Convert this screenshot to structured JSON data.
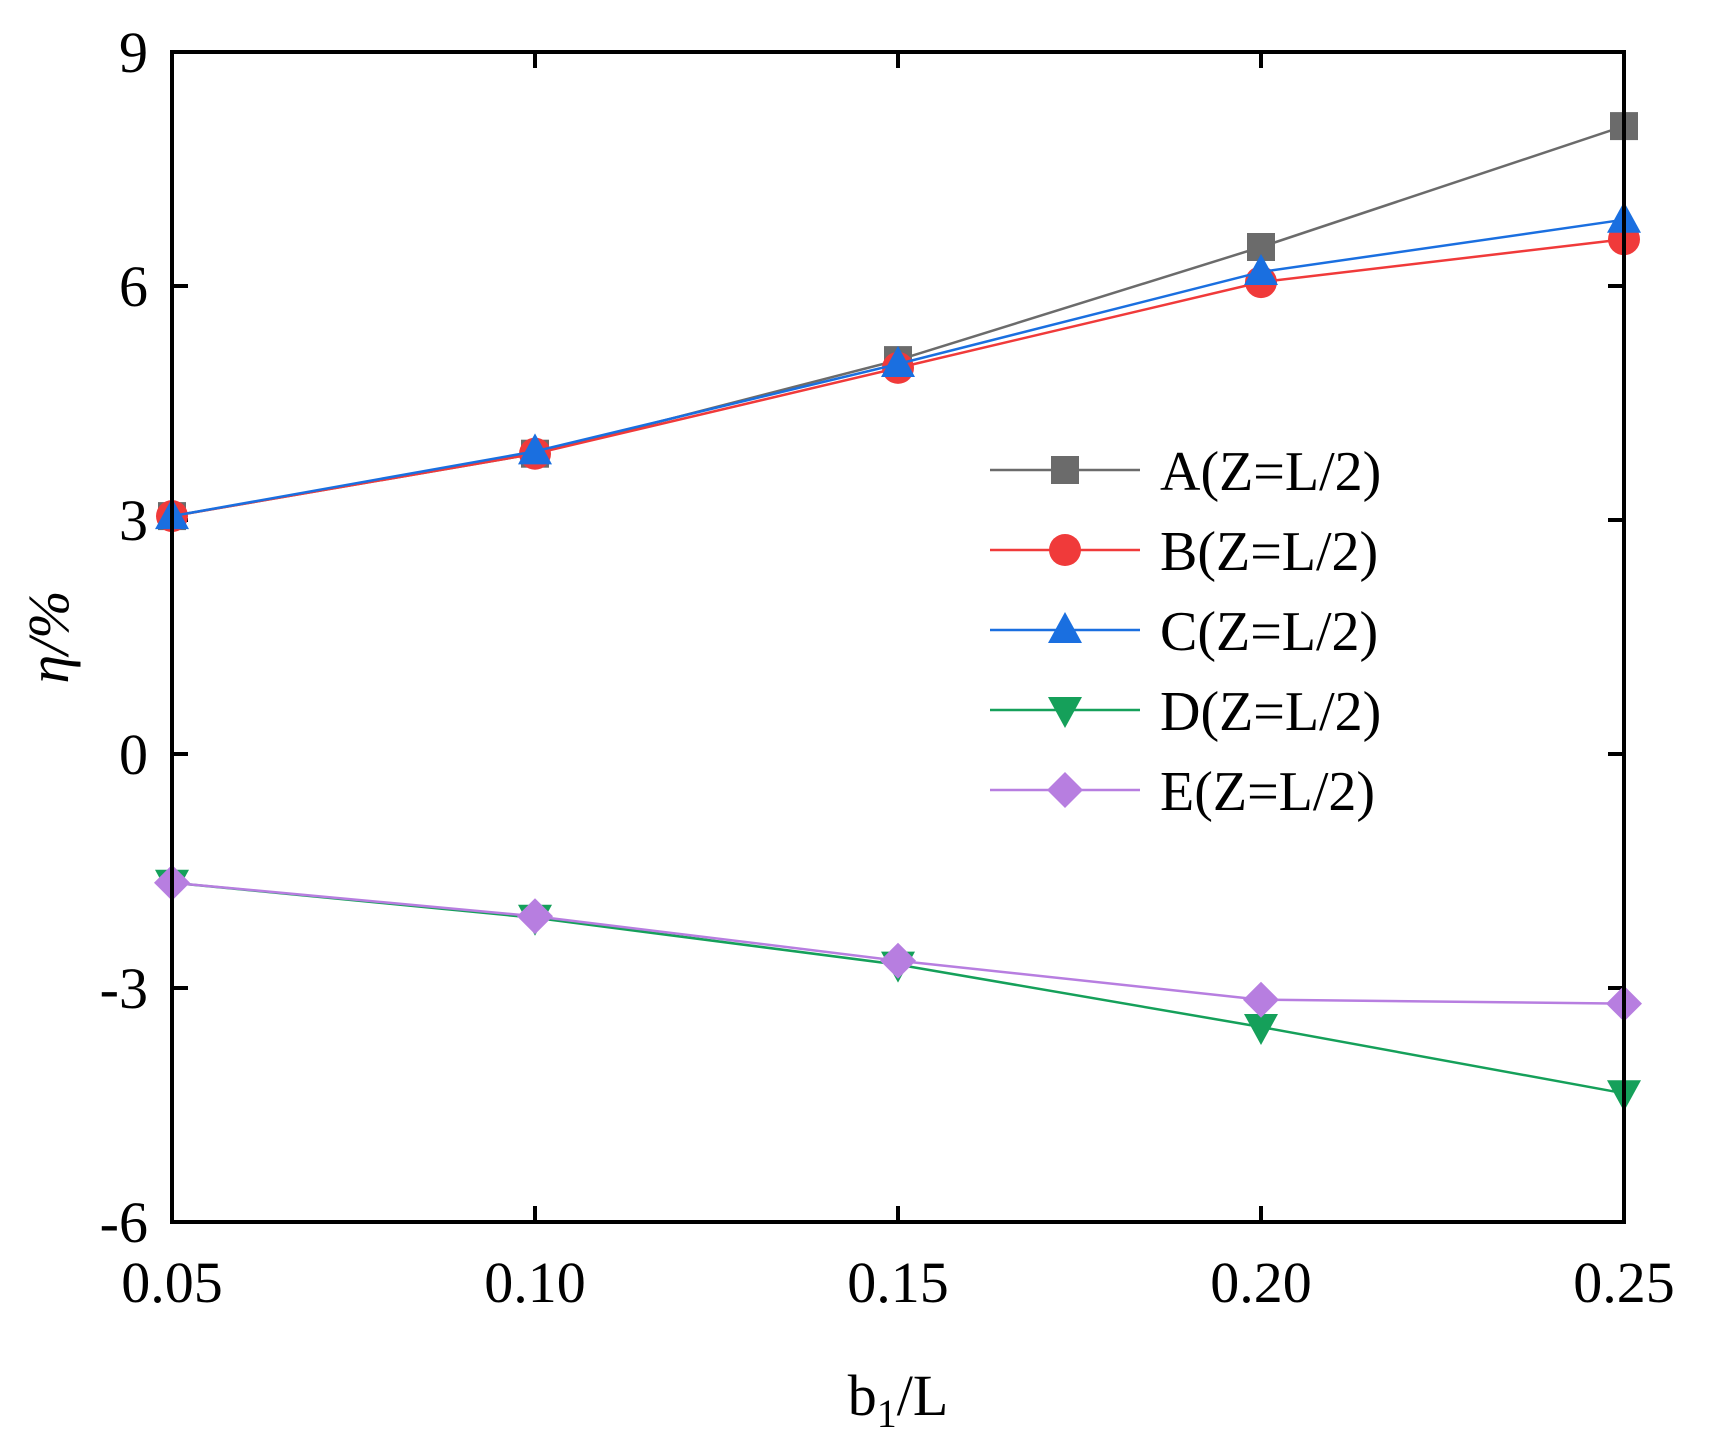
{
  "chart_data": {
    "type": "line",
    "title": "",
    "xlabel": "b",
    "xlabel_sub": "1",
    "xlabel_suffix": "/L",
    "ylabel": "η/%",
    "x": [
      0.05,
      0.1,
      0.15,
      0.2,
      0.25
    ],
    "xlim": [
      0.05,
      0.25
    ],
    "ylim": [
      -6,
      9
    ],
    "xtick_labels": [
      "0.05",
      "0.10",
      "0.15",
      "0.20",
      "0.25"
    ],
    "ytick_values": [
      -6,
      -3,
      0,
      3,
      6,
      9
    ],
    "ytick_labels": [
      "-6",
      "-3",
      "0",
      "3",
      "6",
      "9"
    ],
    "grid": false,
    "legend_position": "center-right",
    "series": [
      {
        "name": "A(Z=L/2)",
        "marker": "square",
        "color": "#6b6b6b",
        "values": [
          3.05,
          3.85,
          5.05,
          6.5,
          8.05
        ]
      },
      {
        "name": "B(Z=L/2)",
        "marker": "circle",
        "color": "#f03a3a",
        "values": [
          3.05,
          3.85,
          4.95,
          6.05,
          6.6
        ]
      },
      {
        "name": "C(Z=L/2)",
        "marker": "triangle-up",
        "color": "#1a6fe0",
        "values": [
          3.05,
          3.88,
          5.0,
          6.18,
          6.85
        ]
      },
      {
        "name": "D(Z=L/2)",
        "marker": "triangle-down",
        "color": "#15a05a",
        "values": [
          -1.65,
          -2.1,
          -2.7,
          -3.5,
          -4.35
        ]
      },
      {
        "name": "E(Z=L/2)",
        "marker": "diamond",
        "color": "#b77ee0",
        "values": [
          -1.65,
          -2.08,
          -2.65,
          -3.15,
          -3.2
        ]
      }
    ]
  }
}
